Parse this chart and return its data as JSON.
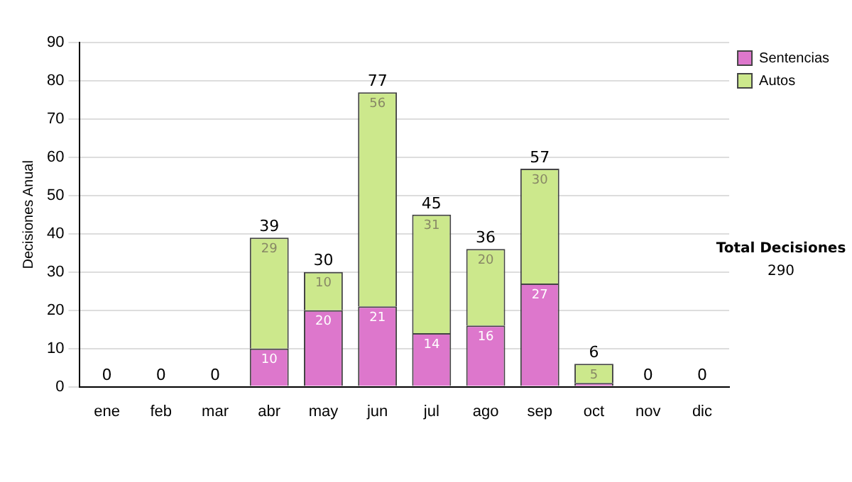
{
  "chart_data": {
    "type": "bar",
    "stacked": true,
    "ylabel": "Decisiones Anual",
    "categories": [
      "ene",
      "feb",
      "mar",
      "abr",
      "may",
      "jun",
      "jul",
      "ago",
      "sep",
      "oct",
      "nov",
      "dic"
    ],
    "series": [
      {
        "name": "Sentencias",
        "color": "#dd77cc",
        "values": [
          0,
          0,
          0,
          10,
          20,
          21,
          14,
          16,
          27,
          1,
          0,
          0
        ],
        "value_labels": [
          null,
          null,
          null,
          "10",
          "20",
          "21",
          "14",
          "16",
          "27",
          null,
          null,
          null
        ]
      },
      {
        "name": "Autos",
        "color": "#cce88c",
        "values": [
          0,
          0,
          0,
          29,
          10,
          56,
          31,
          20,
          30,
          5,
          0,
          0
        ],
        "value_labels": [
          null,
          null,
          null,
          "29",
          "10",
          "56",
          "31",
          "20",
          "30",
          "5",
          null,
          null
        ]
      }
    ],
    "totals": [
      "0",
      "0",
      "0",
      "39",
      "30",
      "77",
      "45",
      "36",
      "57",
      "6",
      "0",
      "0"
    ],
    "ylim": [
      0,
      90
    ],
    "yticks": [
      0,
      10,
      20,
      30,
      40,
      50,
      60,
      70,
      80,
      90
    ],
    "grid": "y",
    "legend": "right",
    "annotations": [
      "Total Decisiones",
      "290"
    ]
  }
}
